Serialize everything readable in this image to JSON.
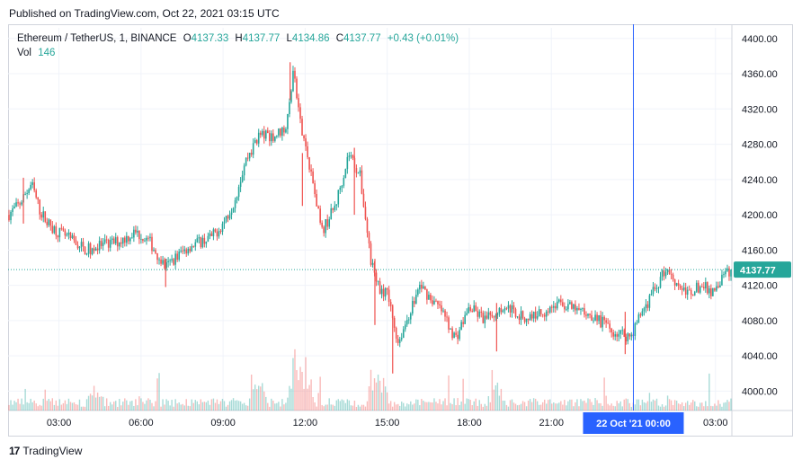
{
  "header": {
    "published": "Published on TradingView.com, Oct 22, 2021 03:15 UTC"
  },
  "legend": {
    "symbol": "Ethereum / TetherUS, 1, BINANCE",
    "o_label": "O",
    "o_value": "4137.33",
    "h_label": "H",
    "h_value": "4137.77",
    "l_label": "L",
    "l_value": "4134.86",
    "c_label": "C",
    "c_value": "4137.77",
    "change": "+0.43 (+0.01%)",
    "vol_label": "Vol",
    "vol_value": "146"
  },
  "footer": {
    "brand": "TradingView",
    "logo_text": "17"
  },
  "colors": {
    "up": "#26a69a",
    "down": "#ef5350",
    "crosshair": "#2962ff",
    "grid": "#f0f3fa",
    "price_line": "#26a69a"
  },
  "chart_data": {
    "type": "candlestick",
    "title": "Ethereum / TetherUS, 1, BINANCE",
    "x_ticks": [
      "03:00",
      "06:00",
      "09:00",
      "12:00",
      "15:00",
      "18:00",
      "21:00",
      "03:00"
    ],
    "x_tick_hours": [
      3,
      6,
      9,
      12,
      15,
      18,
      21,
      27
    ],
    "x_start_hour": 1.14,
    "x_end_hour": 27.6,
    "crosshair_hour": 24.0,
    "crosshair_label": "22 Oct '21   00:00",
    "y_ticks": [
      4000,
      4040,
      4080,
      4120,
      4160,
      4200,
      4240,
      4280,
      4320,
      4360,
      4400
    ],
    "ylim": [
      3978,
      4412
    ],
    "last_price": 4137.77,
    "last_price_label": "4137.77",
    "path_hours": [
      1.14,
      1.5,
      2.0,
      2.3,
      2.6,
      3.0,
      3.5,
      4.0,
      4.6,
      5.2,
      5.8,
      6.3,
      6.9,
      7.2,
      7.8,
      8.6,
      9.0,
      9.4,
      9.8,
      10.3,
      10.9,
      11.3,
      11.45,
      11.55,
      11.8,
      12.2,
      12.6,
      13.1,
      13.6,
      14.0,
      14.4,
      14.6,
      15.0,
      15.4,
      16.2,
      17.0,
      17.5,
      18.0,
      18.6,
      19.3,
      20.0,
      20.7,
      21.3,
      21.9,
      22.6,
      23.2,
      23.9,
      24.3,
      24.7,
      25.2,
      25.6,
      26.0,
      26.5,
      26.9,
      27.3,
      27.6
    ],
    "path_prices": [
      4200,
      4210,
      4235,
      4205,
      4190,
      4180,
      4170,
      4160,
      4165,
      4170,
      4180,
      4170,
      4140,
      4150,
      4165,
      4175,
      4190,
      4215,
      4260,
      4290,
      4290,
      4300,
      4330,
      4365,
      4310,
      4250,
      4180,
      4210,
      4270,
      4245,
      4150,
      4120,
      4110,
      4055,
      4120,
      4090,
      4060,
      4095,
      4080,
      4098,
      4082,
      4090,
      4100,
      4092,
      4085,
      4068,
      4062,
      4090,
      4110,
      4140,
      4122,
      4110,
      4120,
      4112,
      4130,
      4137.77
    ],
    "spike_hours": [
      1.7,
      6.9,
      11.45,
      11.9,
      13.8,
      14.55,
      15.2,
      19.0,
      23.7
    ],
    "spike_lows": [
      4190,
      4118,
      4330,
      4210,
      4200,
      4075,
      4020,
      4045,
      4042
    ],
    "spike_highs": [
      4242,
      4150,
      4373,
      4270,
      4276,
      4150,
      4098,
      4100,
      4090
    ],
    "volume_peaks_hours": [
      11.6,
      12.0,
      14.7,
      10.3,
      4.3,
      19.0
    ],
    "volume_peaks_heights": [
      0.45,
      0.38,
      0.32,
      0.2,
      0.12,
      0.15
    ]
  }
}
